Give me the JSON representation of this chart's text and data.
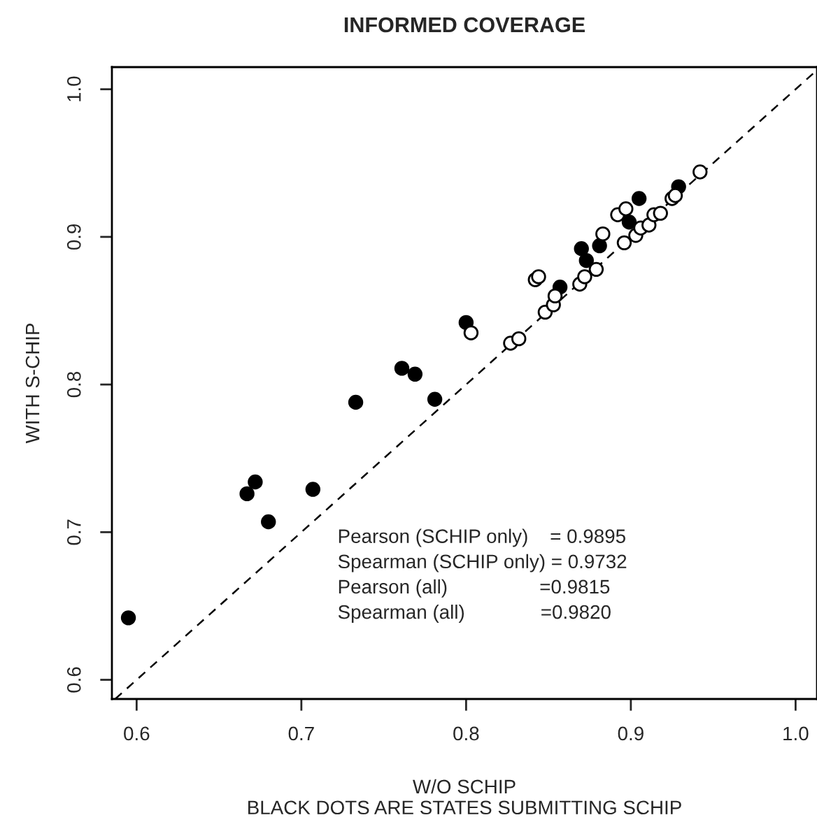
{
  "chart_data": {
    "type": "scatter",
    "title": "INFORMED COVERAGE",
    "xlabel": "W/O SCHIP\nBLACK DOTS ARE STATES SUBMITTING SCHIP",
    "ylabel": "WITH S-CHIP",
    "xlim": [
      0.585,
      1.013
    ],
    "ylim": [
      0.587,
      1.015
    ],
    "xticks": [
      0.6,
      0.7,
      0.8,
      0.9,
      {
        "value": 1.0,
        "label": "1.0"
      }
    ],
    "yticks": [
      0.6,
      0.7,
      0.8,
      0.9,
      {
        "value": 1.0,
        "label": "1.0"
      }
    ],
    "grid": false,
    "legend": false,
    "series": [
      {
        "type": "line",
        "color": "#000000",
        "line_style": "dashed",
        "marker": "none",
        "x": [
          0.587,
          1.013
        ],
        "values": [
          0.587,
          1.013
        ]
      },
      {
        "color": "#000000",
        "marker": "circle",
        "x": [
          0.595,
          0.667,
          0.672,
          0.68,
          0.707,
          0.733,
          0.761,
          0.769,
          0.781,
          0.8,
          0.857,
          0.87,
          0.873,
          0.881,
          0.899,
          0.905,
          0.929
        ],
        "values": [
          0.642,
          0.726,
          0.734,
          0.707,
          0.729,
          0.788,
          0.811,
          0.807,
          0.79,
          0.842,
          0.866,
          0.892,
          0.884,
          0.894,
          0.91,
          0.926,
          0.934
        ]
      },
      {
        "color": "#ffffff",
        "marker": "circle",
        "x": [
          0.803,
          0.827,
          0.832,
          0.842,
          0.844,
          0.848,
          0.853,
          0.854,
          0.869,
          0.872,
          0.879,
          0.883,
          0.892,
          0.896,
          0.897,
          0.903,
          0.906,
          0.911,
          0.914,
          0.918,
          0.925,
          0.927,
          0.942
        ],
        "values": [
          0.835,
          0.828,
          0.831,
          0.871,
          0.873,
          0.849,
          0.854,
          0.86,
          0.868,
          0.873,
          0.878,
          0.902,
          0.915,
          0.896,
          0.919,
          0.901,
          0.906,
          0.908,
          0.915,
          0.916,
          0.926,
          0.928,
          0.944
        ]
      }
    ],
    "annotations": [
      "Pearson (SCHIP only)    = 0.9895",
      "Spearman (SCHIP only) = 0.9732",
      "Pearson (all)                 =0.9815",
      "Spearman (all)              =0.9820"
    ]
  }
}
